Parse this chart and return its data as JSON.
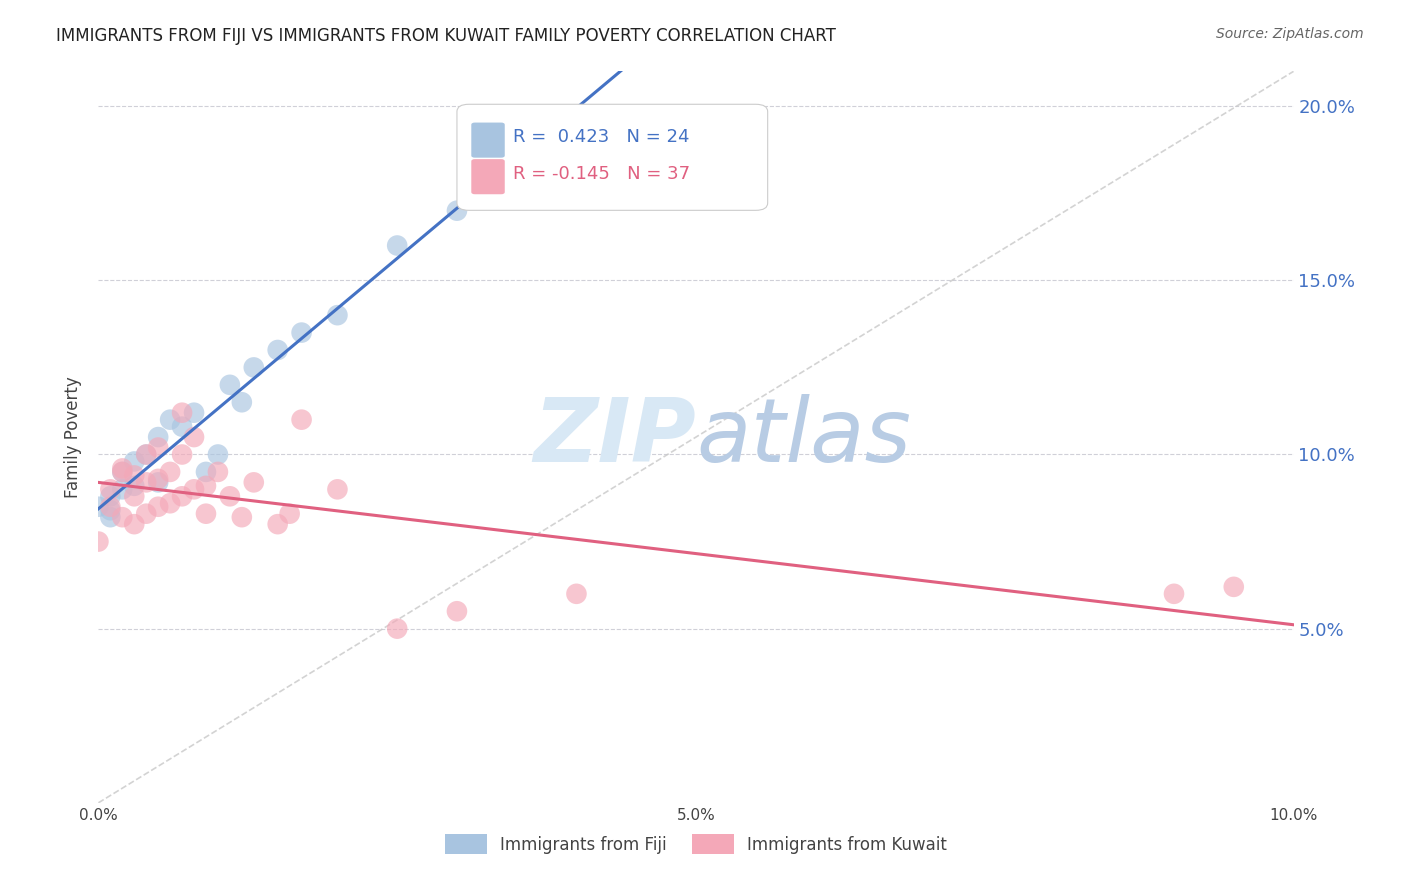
{
  "title": "IMMIGRANTS FROM FIJI VS IMMIGRANTS FROM KUWAIT FAMILY POVERTY CORRELATION CHART",
  "source": "Source: ZipAtlas.com",
  "ylabel": "Family Poverty",
  "xlim": [
    0.0,
    0.1
  ],
  "ylim": [
    0.0,
    0.21
  ],
  "ytick_labels": [
    "",
    "5.0%",
    "10.0%",
    "15.0%",
    "20.0%"
  ],
  "ytick_values": [
    0.0,
    0.05,
    0.1,
    0.15,
    0.2
  ],
  "xtick_labels": [
    "0.0%",
    "",
    "",
    "",
    "",
    "5.0%",
    "",
    "",
    "",
    "",
    "10.0%"
  ],
  "xtick_values": [
    0.0,
    0.01,
    0.02,
    0.03,
    0.04,
    0.05,
    0.06,
    0.07,
    0.08,
    0.09,
    0.1
  ],
  "fiji_color": "#a8c4e0",
  "kuwait_color": "#f4a8b8",
  "fiji_line_color": "#4472c4",
  "kuwait_line_color": "#e06080",
  "diagonal_color": "#c8c8c8",
  "fiji_R": 0.423,
  "fiji_N": 24,
  "kuwait_R": -0.145,
  "kuwait_N": 37,
  "fiji_scatter_x": [
    0.0,
    0.001,
    0.001,
    0.001,
    0.002,
    0.002,
    0.003,
    0.003,
    0.004,
    0.005,
    0.005,
    0.006,
    0.007,
    0.008,
    0.009,
    0.01,
    0.011,
    0.012,
    0.013,
    0.015,
    0.017,
    0.02,
    0.025,
    0.03
  ],
  "fiji_scatter_y": [
    0.085,
    0.082,
    0.088,
    0.084,
    0.09,
    0.095,
    0.091,
    0.098,
    0.1,
    0.092,
    0.105,
    0.11,
    0.108,
    0.112,
    0.095,
    0.1,
    0.12,
    0.115,
    0.125,
    0.13,
    0.135,
    0.14,
    0.16,
    0.17
  ],
  "kuwait_scatter_x": [
    0.0,
    0.001,
    0.001,
    0.002,
    0.002,
    0.002,
    0.003,
    0.003,
    0.003,
    0.004,
    0.004,
    0.004,
    0.005,
    0.005,
    0.005,
    0.006,
    0.006,
    0.007,
    0.007,
    0.007,
    0.008,
    0.008,
    0.009,
    0.009,
    0.01,
    0.011,
    0.012,
    0.013,
    0.015,
    0.016,
    0.017,
    0.02,
    0.025,
    0.03,
    0.04,
    0.09,
    0.095
  ],
  "kuwait_scatter_y": [
    0.075,
    0.09,
    0.085,
    0.095,
    0.082,
    0.096,
    0.08,
    0.088,
    0.094,
    0.083,
    0.092,
    0.1,
    0.085,
    0.093,
    0.102,
    0.086,
    0.095,
    0.088,
    0.1,
    0.112,
    0.09,
    0.105,
    0.083,
    0.091,
    0.095,
    0.088,
    0.082,
    0.092,
    0.08,
    0.083,
    0.11,
    0.09,
    0.05,
    0.055,
    0.06,
    0.06,
    0.062
  ],
  "watermark_zip": "ZIP",
  "watermark_atlas": "atlas",
  "watermark_color": "#d8e8f5",
  "background_color": "#ffffff",
  "right_axis_color": "#4472c4",
  "fiji_legend_label": "Immigrants from Fiji",
  "kuwait_legend_label": "Immigrants from Kuwait"
}
